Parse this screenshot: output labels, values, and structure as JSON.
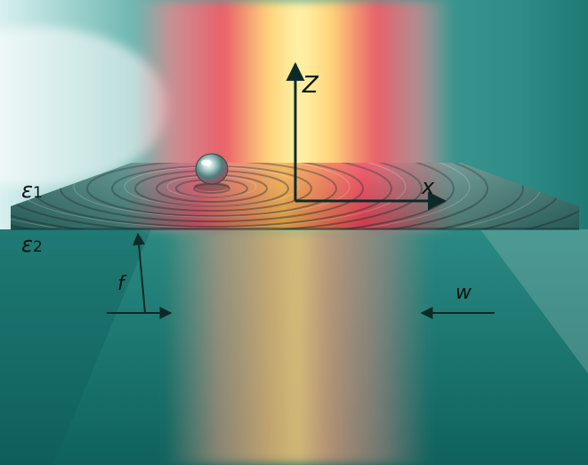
{
  "labels": {
    "z_axis": "Z",
    "x_axis": "x",
    "medium_1_symbol": "ε",
    "medium_1_index": "1",
    "medium_2_symbol": "ε",
    "medium_2_index": "2",
    "force": "f",
    "beam_waist": "w"
  },
  "colors": {
    "background_teal": "#1e7a72",
    "light_teal": "#7fc9c4",
    "beam_yellow": "#fff0a0",
    "beam_red": "#f04a55",
    "arrow": "#0c2a28"
  }
}
